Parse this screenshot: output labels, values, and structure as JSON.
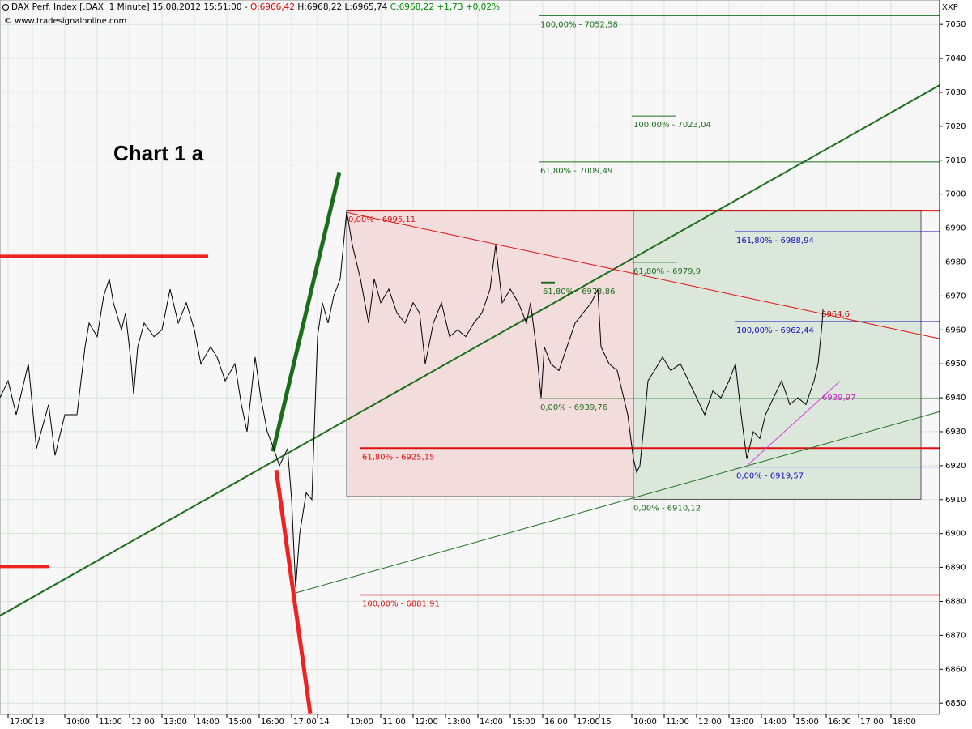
{
  "header": {
    "segments": [
      {
        "text": "DAX Perf. Index [.DAX  1 Minute] 15.08.2012 15:51:00 - ",
        "color": "#000000"
      },
      {
        "text": "O:6966,42",
        "color": "#dd0000"
      },
      {
        "text": " H:6968,22 L:6965,74 ",
        "color": "#000000"
      },
      {
        "text": "C:6968,22 +1,73 +0,02%",
        "color": "#008800"
      }
    ],
    "copyright": "© www.tradesignalonline.com",
    "corner": "XXP"
  },
  "chart_data": {
    "type": "line",
    "title": "Chart 1 a",
    "color": "#000000",
    "grid": true,
    "xlim": [
      0,
      29
    ],
    "ylim": [
      6846.7,
      7057.2
    ],
    "yticks": [
      6850,
      6860,
      6870,
      6880,
      6890,
      6900,
      6910,
      6920,
      6930,
      6940,
      6950,
      6960,
      6970,
      6980,
      6990,
      7000,
      7010,
      7020,
      7030,
      7040,
      7050
    ],
    "xticks": [
      {
        "value": 0.25,
        "label": "17:00"
      },
      {
        "value": 1,
        "label": "13"
      },
      {
        "value": 2,
        "label": "10:00"
      },
      {
        "value": 3,
        "label": "11:00"
      },
      {
        "value": 4,
        "label": "12:00"
      },
      {
        "value": 5,
        "label": "13:00"
      },
      {
        "value": 6,
        "label": "14:00"
      },
      {
        "value": 7,
        "label": "15:00"
      },
      {
        "value": 8,
        "label": "16:00"
      },
      {
        "value": 9,
        "label": "17:00"
      },
      {
        "value": 9.8,
        "label": "14"
      },
      {
        "value": 10.75,
        "label": "10:00"
      },
      {
        "value": 11.75,
        "label": "11:00"
      },
      {
        "value": 12.75,
        "label": "12:00"
      },
      {
        "value": 13.75,
        "label": "13:00"
      },
      {
        "value": 14.75,
        "label": "14:00"
      },
      {
        "value": 15.75,
        "label": "15:00"
      },
      {
        "value": 16.75,
        "label": "16:00"
      },
      {
        "value": 17.75,
        "label": "17:00"
      },
      {
        "value": 18.5,
        "label": "15"
      },
      {
        "value": 19.5,
        "label": "10:00"
      },
      {
        "value": 20.5,
        "label": "11:00"
      },
      {
        "value": 21.5,
        "label": "12:00"
      },
      {
        "value": 22.5,
        "label": "13:00"
      },
      {
        "value": 23.5,
        "label": "14:00"
      },
      {
        "value": 24.5,
        "label": "15:00"
      },
      {
        "value": 25.5,
        "label": "16:00"
      },
      {
        "value": 26.5,
        "label": "17:00"
      },
      {
        "value": 27.5,
        "label": "18:00"
      }
    ],
    "x": [
      0,
      0.25,
      0.5,
      0.875,
      1.125,
      1.5,
      1.7,
      2,
      2.375,
      2.625,
      2.75,
      3,
      3.2,
      3.375,
      3.5,
      3.75,
      3.875,
      4.05,
      4.125,
      4.25,
      4.45,
      4.75,
      5,
      5.25,
      5.5,
      5.75,
      6,
      6.2,
      6.5,
      6.7,
      6.95,
      7.25,
      7.45,
      7.625,
      7.875,
      8.05,
      8.25,
      8.45,
      8.625,
      8.875,
      9,
      9.125,
      9.25,
      9.45,
      9.625,
      9.8,
      9.95,
      10.125,
      10.3,
      10.5,
      10.7,
      10.875,
      11.125,
      11.375,
      11.55,
      11.75,
      12,
      12.25,
      12.5,
      12.75,
      12.95,
      13.125,
      13.375,
      13.625,
      13.875,
      14.125,
      14.375,
      14.625,
      14.875,
      15.125,
      15.3,
      15.5,
      15.75,
      16,
      16.25,
      16.375,
      16.55,
      16.7,
      16.8,
      17,
      17.25,
      17.5,
      17.75,
      18,
      18.25,
      18.45,
      18.55,
      18.8,
      19.05,
      19.25,
      19.375,
      19.55,
      19.65,
      19.75,
      19.875,
      20,
      20.2,
      20.45,
      20.7,
      21,
      21.25,
      21.5,
      21.75,
      22,
      22.25,
      22.5,
      22.7,
      22.875,
      23.05,
      23.25,
      23.45,
      23.625,
      23.875,
      24.125,
      24.375,
      24.625,
      24.875,
      25.125,
      25.25,
      25.375,
      25.4
    ],
    "values": [
      6940,
      6945,
      6935,
      6950,
      6925,
      6938,
      6923,
      6935,
      6935,
      6955,
      6962,
      6958,
      6970,
      6975,
      6968,
      6960,
      6965,
      6950,
      6941,
      6955,
      6962,
      6958,
      6960,
      6972,
      6962,
      6968,
      6960,
      6950,
      6955,
      6952,
      6945,
      6950,
      6938,
      6930,
      6952,
      6940,
      6930,
      6925,
      6920,
      6925,
      6910,
      6884,
      6900,
      6912,
      6910,
      6958,
      6968,
      6962,
      6970,
      6975,
      6995,
      6985,
      6975,
      6962,
      6975,
      6968,
      6972,
      6965,
      6962,
      6968,
      6965,
      6950,
      6962,
      6968,
      6958,
      6960,
      6958,
      6962,
      6965,
      6972,
      6985,
      6968,
      6972,
      6968,
      6962,
      6968,
      6955,
      6940,
      6955,
      6950,
      6948,
      6955,
      6962,
      6965,
      6968,
      6972,
      6955,
      6950,
      6948,
      6940,
      6935,
      6922,
      6918,
      6920,
      6932,
      6945,
      6948,
      6952,
      6948,
      6950,
      6945,
      6940,
      6935,
      6942,
      6940,
      6945,
      6950,
      6935,
      6922,
      6930,
      6928,
      6935,
      6940,
      6945,
      6938,
      6940,
      6938,
      6945,
      6950,
      6962,
      6966
    ],
    "zones": [
      {
        "x": [
          10.7,
          19.55
        ],
        "y": [
          6910.9,
          6995.3
        ],
        "color": "#f3dcdc"
      },
      {
        "x": [
          19.55,
          28.425
        ],
        "y": [
          6910.1,
          6995.3
        ],
        "color": "#dce7dc"
      }
    ],
    "levels": [
      {
        "value": 7052.58,
        "label": "100,00% - 7052,58",
        "color": "#1f6e1f",
        "x": [
          16.625,
          29
        ]
      },
      {
        "value": 7023.04,
        "label": "100,00% - 7023,04",
        "color": "#1f6e1f",
        "x": [
          19.5,
          20.875
        ]
      },
      {
        "value": 7009.49,
        "label": "61,80% - 7009,49",
        "color": "#1f6e1f",
        "x": [
          16.625,
          29
        ]
      },
      {
        "value": 6979.9,
        "label": "61,80% - 6979,9",
        "color": "#1f6e1f",
        "x": [
          19.5,
          20.875
        ]
      },
      {
        "value": 6973.86,
        "label": "61,80% - 6973,86",
        "color": "#1f6e1f",
        "x": [
          16.7,
          17.125
        ]
      },
      {
        "value": 6939.76,
        "label": "0,00% - 6939,76",
        "color": "#1f6e1f",
        "x": [
          16.625,
          29
        ]
      },
      {
        "value": 6910.12,
        "label": "0,00% - 6910,12",
        "color": "#1f6e1f",
        "x": [
          19.5,
          28.425
        ]
      },
      {
        "value": 6995.11,
        "label": "0,00% - 6995,11",
        "color": "#e01010",
        "x": [
          10.7,
          29
        ]
      },
      {
        "value": 6925.15,
        "label": "61,80% - 6925,15",
        "color": "#e01010",
        "x": [
          11.125,
          29
        ]
      },
      {
        "value": 6881.91,
        "label": "100,00% - 6881,91",
        "color": "#e01010",
        "x": [
          11.125,
          29
        ]
      },
      {
        "value": 6988.94,
        "label": "161,80% - 6988,94",
        "color": "#1010c0",
        "x": [
          22.675,
          29
        ]
      },
      {
        "value": 6962.44,
        "label": "100,00% - 6962,44",
        "color": "#1010c0",
        "x": [
          22.675,
          29
        ]
      },
      {
        "value": 6919.57,
        "label": "0,00% - 6919,57",
        "color": "#1010c0",
        "x": [
          22.675,
          29
        ]
      }
    ],
    "lines": [
      {
        "x": [
          8.425,
          10.475
        ],
        "y": [
          6924.2,
          7006.5
        ],
        "color": "#1a6e1a"
      },
      {
        "x": [
          8.525,
          9.575
        ],
        "y": [
          6918.7,
          6847
        ],
        "color": "#ee2222"
      },
      {
        "x": [
          0,
          6.425
        ],
        "y": [
          6981.7,
          6981.7
        ],
        "color": "#ee2222"
      },
      {
        "x": [
          0,
          1.5
        ],
        "y": [
          6890.3,
          6890.3
        ],
        "color": "#ee2222"
      },
      {
        "x": [
          0,
          29
        ],
        "y": [
          6875.8,
          7032.1
        ],
        "color": "#1a6e1a"
      },
      {
        "x": [
          10.7,
          29
        ],
        "y": [
          6994.6,
          6957.4
        ],
        "color": "#e01010"
      },
      {
        "x": [
          9.125,
          29
        ],
        "y": [
          6882.5,
          6935.9
        ],
        "color": "#1a6e1a"
      },
      {
        "x": [
          23.05,
          25.925
        ],
        "y": [
          6919.9,
          6944.9
        ],
        "color": "#dd33dd"
      }
    ],
    "line_labels": [
      {
        "value": 6964.6,
        "label": "6964,6",
        "color": "#c01010",
        "x": 25.35
      },
      {
        "value": 6939.97,
        "label": "6939,97",
        "color": "#cc22cc",
        "x": 25.375
      }
    ]
  }
}
